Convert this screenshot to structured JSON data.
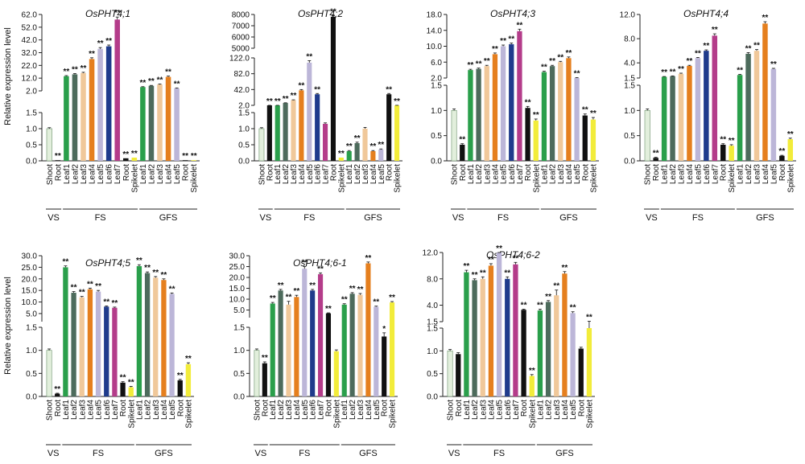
{
  "figure": {
    "y_axis_label": "Relative expression level",
    "group_labels": [
      "VS",
      "FS",
      "GFS"
    ],
    "colors": {
      "Shoot": "#e2efdc",
      "Root": "#111111",
      "Leaf1": "#2a9f4b",
      "Leaf2": "#4d6b5c",
      "Leaf3": "#f0c89a",
      "Leaf4": "#e57f1e",
      "Leaf5": "#bcb6d8",
      "Leaf6": "#1f3b8c",
      "Leaf7": "#b43c8a",
      "Spikelet": "#f2ec3a"
    }
  },
  "chart_data": [
    {
      "title": "OsPHT4;1",
      "type": "bar",
      "ylabel": "Relative expression level",
      "categories": [
        "Shoot",
        "Root",
        "Leaf1",
        "Leaf2",
        "Leaf3",
        "Leaf4",
        "Leaf5",
        "Leaf6",
        "Leaf7",
        "Root",
        "Spikelet",
        "Leaf1",
        "Leaf2",
        "Leaf3",
        "Leaf4",
        "Leaf5",
        "Root",
        "Spikelet"
      ],
      "groups": [
        {
          "label": "VS",
          "from": 0,
          "to": 1
        },
        {
          "label": "FS",
          "from": 2,
          "to": 10
        },
        {
          "label": "GFS",
          "from": 11,
          "to": 17
        }
      ],
      "values": [
        1.0,
        0.02,
        13.5,
        15.0,
        16.0,
        27.0,
        35.0,
        37.0,
        58.0,
        0.08,
        0.1,
        5.0,
        6.0,
        7.0,
        13.0,
        4.0,
        0.02,
        0.02
      ],
      "errors": [
        0.03,
        0,
        0.5,
        0.6,
        0.6,
        1.0,
        1.0,
        1.0,
        2.0,
        0,
        0,
        0.3,
        0.3,
        0.4,
        0.6,
        0.3,
        0,
        0
      ],
      "significance": [
        "",
        "**",
        "**",
        "**",
        "**",
        "**",
        "**",
        "**",
        "**",
        "**",
        "**",
        "**",
        "**",
        "**",
        "**",
        "**",
        "**",
        "**"
      ],
      "lower_ylim": [
        0,
        1.5
      ],
      "lower_ticks": [
        "0.0",
        "0.5",
        "1.0",
        "1.5"
      ],
      "upper_ylim": [
        2.0,
        62.0
      ],
      "upper_ticks": [
        "2.0",
        "12.0",
        "22.0",
        "32.0",
        "42.0",
        "52.0",
        "62.0"
      ],
      "upper_extra_ticks": [
        "42.0"
      ]
    },
    {
      "title": "OsPHT4;2",
      "type": "bar",
      "ylabel": "",
      "categories": [
        "Shoot",
        "Root",
        "Leaf1",
        "Leaf2",
        "Leaf3",
        "Leaf4",
        "Leaf5",
        "Leaf6",
        "Leaf7",
        "Root",
        "Spikelet",
        "Leaf1",
        "Leaf2",
        "Leaf3",
        "Leaf4",
        "Leaf5",
        "Root",
        "Spikelet"
      ],
      "groups": [
        {
          "label": "VS",
          "from": 0,
          "to": 1
        },
        {
          "label": "FS",
          "from": 2,
          "to": 10
        },
        {
          "label": "GFS",
          "from": 11,
          "to": 17
        }
      ],
      "values": [
        1.0,
        2.0,
        2.0,
        8.0,
        15.0,
        40.0,
        110.0,
        30.0,
        1.15,
        7800,
        0.1,
        0.3,
        0.55,
        1.0,
        0.3,
        0.35,
        30.0,
        2.0
      ],
      "errors": [
        0.03,
        0.1,
        0.1,
        0.5,
        1,
        2,
        5,
        2,
        0.03,
        100,
        0,
        0.02,
        0.03,
        0.04,
        0.02,
        0.02,
        2,
        0.1
      ],
      "significance": [
        "",
        "**",
        "**",
        "**",
        "**",
        "**",
        "**",
        "**",
        "",
        "**",
        "**",
        "**",
        "**",
        "",
        "**",
        "**",
        "**",
        "**"
      ],
      "lower_ylim": [
        0,
        1.5
      ],
      "lower_ticks": [
        "0.0",
        "0.5",
        "1.0",
        "1.5"
      ],
      "upper_ylim": [
        2.0,
        122.0
      ],
      "upper_ticks": [
        "2.0",
        "42.0",
        "82.0",
        "122.0"
      ],
      "top_ylim": [
        5000,
        8000
      ],
      "top_ticks": [
        "5000",
        "6000",
        "7000",
        "8000"
      ]
    },
    {
      "title": "OsPHT4;3",
      "type": "bar",
      "ylabel": "",
      "categories": [
        "Shoot",
        "Root",
        "Leaf1",
        "Leaf2",
        "Leaf3",
        "Leaf4",
        "Leaf5",
        "Leaf6",
        "Leaf7",
        "Root",
        "Spikelet",
        "Leaf1",
        "Leaf2",
        "Leaf3",
        "Leaf4",
        "Leaf5",
        "Root",
        "Spikelet"
      ],
      "groups": [
        {
          "label": "VS",
          "from": 0,
          "to": 1
        },
        {
          "label": "FS",
          "from": 2,
          "to": 10
        },
        {
          "label": "GFS",
          "from": 11,
          "to": 17
        }
      ],
      "values": [
        1.0,
        0.32,
        4.0,
        4.3,
        5.0,
        8.0,
        10.0,
        10.5,
        13.8,
        1.05,
        0.8,
        3.5,
        5.0,
        6.0,
        7.0,
        2.0,
        0.9,
        0.82
      ],
      "errors": [
        0.03,
        0.02,
        0.2,
        0.2,
        0.2,
        0.3,
        0.3,
        0.3,
        0.5,
        0.03,
        0.03,
        0.2,
        0.2,
        0.2,
        0.3,
        0.1,
        0.03,
        0.04
      ],
      "significance": [
        "",
        "**",
        "**",
        "**",
        "**",
        "**",
        "**",
        "**",
        "**",
        "**",
        "**",
        "**",
        "**",
        "**",
        "**",
        "**",
        "**",
        "**"
      ],
      "lower_ylim": [
        0,
        1.5
      ],
      "lower_ticks": [
        "0.0",
        "0.5",
        "1.0",
        "1.5"
      ],
      "upper_ylim": [
        2.0,
        18.0
      ],
      "upper_ticks": [
        "2.0",
        "6.0",
        "10.0",
        "14.0",
        "18.0"
      ]
    },
    {
      "title": "OsPHT4;4",
      "type": "bar",
      "ylabel": "",
      "categories": [
        "Shoot",
        "Root",
        "Leaf1",
        "Leaf2",
        "Leaf3",
        "Leaf4",
        "Leaf5",
        "Leaf6",
        "Leaf7",
        "Root",
        "Spikelet",
        "Leaf1",
        "Leaf2",
        "Leaf3",
        "Leaf4",
        "Leaf5",
        "Root",
        "Spikelet"
      ],
      "groups": [
        {
          "label": "VS",
          "from": 0,
          "to": 1
        },
        {
          "label": "FS",
          "from": 2,
          "to": 10
        },
        {
          "label": "GFS",
          "from": 11,
          "to": 17
        }
      ],
      "values": [
        1.0,
        0.06,
        1.7,
        1.8,
        2.2,
        3.5,
        4.8,
        6.0,
        8.5,
        0.32,
        0.3,
        2.0,
        5.5,
        6.0,
        10.5,
        3.0,
        0.1,
        0.43
      ],
      "errors": [
        0.03,
        0.01,
        0.05,
        0.05,
        0.1,
        0.1,
        0.1,
        0.15,
        0.3,
        0.02,
        0.02,
        0.1,
        0.2,
        0.2,
        0.3,
        0.1,
        0.01,
        0.02
      ],
      "significance": [
        "",
        "**",
        "**",
        "**",
        "**",
        "**",
        "**",
        "**",
        "**",
        "**",
        "**",
        "**",
        "**",
        "**",
        "**",
        "**",
        "**",
        "**"
      ],
      "lower_ylim": [
        0,
        1.5
      ],
      "lower_ticks": [
        "0.0",
        "0.5",
        "1.0",
        "1.5"
      ],
      "upper_ylim": [
        1.5,
        12.0
      ],
      "upper_ticks": [
        "1.5",
        "4.0",
        "8.0",
        "12.0"
      ]
    },
    {
      "title": "OsPHT4;5",
      "type": "bar",
      "ylabel": "Relative expression level",
      "categories": [
        "Shoot",
        "Root",
        "Leaf1",
        "Leaf2",
        "Leaf3",
        "Leaf4",
        "Leaf5",
        "Leaf6",
        "Leaf7",
        "Root",
        "Spikelet",
        "Leaf1",
        "Leaf2",
        "Leaf3",
        "Leaf4",
        "Leaf5",
        "Root",
        "Spikelet"
      ],
      "groups": [
        {
          "label": "VS",
          "from": 0,
          "to": 1
        },
        {
          "label": "FS",
          "from": 2,
          "to": 10
        },
        {
          "label": "GFS",
          "from": 11,
          "to": 17
        }
      ],
      "values": [
        1.0,
        0.06,
        25.0,
        14.0,
        12.0,
        15.5,
        14.5,
        8.0,
        7.5,
        0.3,
        0.2,
        25.5,
        22.5,
        20.5,
        19.5,
        13.5,
        0.35,
        0.7
      ],
      "errors": [
        0.03,
        0.01,
        0.6,
        0.5,
        0.4,
        0.5,
        0.5,
        0.3,
        0.3,
        0.02,
        0.02,
        0.6,
        0.5,
        0.5,
        0.5,
        0.4,
        0.02,
        0.03
      ],
      "significance": [
        "",
        "**",
        "**",
        "**",
        "**",
        "**",
        "**",
        "**",
        "**",
        "**",
        "**",
        "**",
        "**",
        "**",
        "**",
        "**",
        "**",
        "**"
      ],
      "lower_ylim": [
        0,
        1.5
      ],
      "lower_ticks": [
        "0.0",
        "0.5",
        "1.0",
        "1.5"
      ],
      "upper_ylim": [
        1.5,
        30.0
      ],
      "upper_ticks": [
        "5.0",
        "10.0",
        "15.0",
        "20.0",
        "25.0",
        "30.0"
      ]
    },
    {
      "title": "OsPHT4;6-1",
      "type": "bar",
      "ylabel": "",
      "categories": [
        "Shoot",
        "Root",
        "Leaf1",
        "Leaf2",
        "Leaf3",
        "Leaf4",
        "Leaf5",
        "Leaf6",
        "Leaf7",
        "Root",
        "Spikelet",
        "Leaf1",
        "Leaf2",
        "Leaf3",
        "Leaf4",
        "Leaf5",
        "Root",
        "Spikelet"
      ],
      "groups": [
        {
          "label": "VS",
          "from": 0,
          "to": 1
        },
        {
          "label": "FS",
          "from": 2,
          "to": 10
        },
        {
          "label": "GFS",
          "from": 11,
          "to": 17
        }
      ],
      "values": [
        1.0,
        0.72,
        8.0,
        14.0,
        7.5,
        11.0,
        24.0,
        14.0,
        21.5,
        3.5,
        0.98,
        7.5,
        12.5,
        12.0,
        26.5,
        6.5,
        1.3,
        8.5
      ],
      "errors": [
        0.03,
        0.03,
        0.5,
        0.5,
        1.5,
        0.8,
        1.0,
        0.5,
        0.6,
        0.2,
        0.03,
        0.4,
        0.5,
        0.6,
        0.6,
        0.3,
        0.08,
        0.4
      ],
      "significance": [
        "",
        "**",
        "**",
        "**",
        "**",
        "**",
        "**",
        "**",
        "**",
        "**",
        "",
        "**",
        "**",
        "**",
        "**",
        "**",
        "*",
        "**"
      ],
      "lower_ylim": [
        0,
        1.5
      ],
      "lower_ticks": [
        "0.0",
        "0.5",
        "1.0",
        "1.5"
      ],
      "upper_ylim": [
        1.5,
        30.0
      ],
      "upper_ticks": [
        "5.0",
        "10.0",
        "15.0",
        "20.0",
        "25.0",
        "30.0"
      ]
    },
    {
      "title": "OsPHT4;6-2",
      "type": "bar",
      "ylabel": "",
      "categories": [
        "Shoot",
        "Root",
        "Leaf1",
        "Leaf2",
        "Leaf3",
        "Leaf4",
        "Leaf5",
        "Leaf6",
        "Leaf7",
        "Root",
        "Spikelet",
        "Leaf1",
        "Leaf2",
        "Leaf3",
        "Leaf4",
        "Leaf5",
        "Root",
        "Spikelet"
      ],
      "groups": [
        {
          "label": "VS",
          "from": 0,
          "to": 1
        },
        {
          "label": "FS",
          "from": 2,
          "to": 10
        },
        {
          "label": "GFS",
          "from": 11,
          "to": 17
        }
      ],
      "values": [
        1.0,
        0.93,
        9.0,
        7.8,
        8.0,
        10.0,
        12.0,
        8.0,
        10.2,
        3.3,
        0.45,
        3.2,
        4.5,
        5.5,
        8.8,
        2.8,
        1.05,
        1.5
      ],
      "errors": [
        0.03,
        0.03,
        0.3,
        0.2,
        0.3,
        0.3,
        0.3,
        0.3,
        0.3,
        0.1,
        0.03,
        0.2,
        0.2,
        0.8,
        0.3,
        0.2,
        0.03,
        0.05
      ],
      "significance": [
        "",
        "",
        "**",
        "**",
        "**",
        "**",
        "**",
        "**",
        "**",
        "**",
        "**",
        "**",
        "**",
        "**",
        "**",
        "**",
        "",
        "**"
      ],
      "lower_ylim": [
        0,
        1.5
      ],
      "lower_ticks": [
        "0.0",
        "0.5",
        "1.0",
        "1.5"
      ],
      "upper_ylim": [
        1.5,
        12.0
      ],
      "upper_ticks": [
        "1.5",
        "4.0",
        "8.0",
        "12.0"
      ]
    }
  ]
}
